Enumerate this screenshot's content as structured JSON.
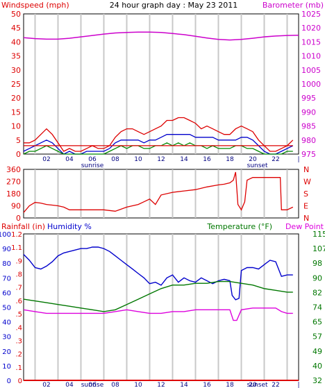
{
  "header": {
    "title": "24 hour graph day : May 23 2011",
    "left_label": "Windspeed (mph)",
    "right_label": "Barometer (mb)"
  },
  "labels": {
    "sunrise": "sunrise",
    "sunset": "sunset",
    "rainfall": "Rainfall (in)",
    "humidity": "Humidity %",
    "temperature": "Temperature (°F)",
    "dewpoint": "Dew Point"
  },
  "colors": {
    "windspeed": "#dd0000",
    "gust": "#dd0000",
    "avg_wind": "#0000cc",
    "wind_green": "#008800",
    "barometer": "#cc00cc",
    "direction": "#dd0000",
    "humidity": "#0000cc",
    "temperature": "#007700",
    "dewpoint": "#dd00dd",
    "rainfall": "#dd0000",
    "grid": "#c8c8c8"
  },
  "chart_data": [
    {
      "type": "line",
      "name": "wind-barometer-panel",
      "x_ticks": [
        "02",
        "04",
        "06",
        "08",
        "10",
        "12",
        "14",
        "16",
        "18",
        "20",
        "22",
        "|"
      ],
      "xlim": [
        0,
        24
      ],
      "left_axis": {
        "label": "Windspeed (mph)",
        "ylim": [
          0,
          50
        ],
        "ticks": [
          "0",
          "5",
          "10",
          "15",
          "20",
          "25",
          "30",
          "35",
          "40",
          "45",
          "50"
        ]
      },
      "right_axis": {
        "label": "Barometer (mb)",
        "ylim": [
          975,
          1025
        ],
        "ticks": [
          "975",
          "980",
          "985",
          "990",
          "995",
          "1000",
          "1005",
          "1010",
          "1015",
          "1020",
          "1025"
        ]
      },
      "sunrise_hour": 6.0,
      "sunset_hour": 20.4,
      "series": [
        {
          "key": "gust",
          "axis": "left",
          "x": [
            0,
            0.5,
            1,
            1.5,
            2,
            2.5,
            3,
            3.5,
            4,
            4.5,
            5,
            5.5,
            6,
            6.5,
            7,
            7.5,
            8,
            8.5,
            9,
            9.5,
            10,
            10.5,
            11,
            11.5,
            12,
            12.5,
            13,
            13.5,
            14,
            14.5,
            15,
            15.5,
            16,
            16.5,
            17,
            17.5,
            18,
            18.5,
            19,
            19.5,
            20,
            20.5,
            21,
            21.5,
            22,
            22.5,
            23,
            23.5
          ],
          "values": [
            4,
            4,
            5,
            7,
            9,
            7,
            4,
            1,
            2,
            1,
            1,
            2,
            3,
            2,
            2,
            3,
            6,
            8,
            9,
            9,
            8,
            7,
            8,
            9,
            10,
            12,
            12,
            13,
            13,
            12,
            11,
            9,
            10,
            9,
            8,
            7,
            7,
            9,
            10,
            9,
            8,
            5,
            3,
            1,
            1,
            2,
            3,
            5
          ]
        },
        {
          "key": "avg_wind",
          "axis": "left",
          "x": [
            0,
            0.5,
            1,
            1.5,
            2,
            2.5,
            3,
            3.5,
            4,
            4.5,
            5,
            5.5,
            6,
            6.5,
            7,
            7.5,
            8,
            8.5,
            9,
            9.5,
            10,
            10.5,
            11,
            11.5,
            12,
            12.5,
            13,
            13.5,
            14,
            14.5,
            15,
            15.5,
            16,
            16.5,
            17,
            17.5,
            18,
            18.5,
            19,
            19.5,
            20,
            20.5,
            21,
            21.5,
            22,
            22.5,
            23,
            23.5
          ],
          "values": [
            1,
            2,
            3,
            4,
            5,
            4,
            2,
            0,
            1,
            0,
            0,
            1,
            1,
            1,
            1,
            2,
            4,
            5,
            5,
            5,
            5,
            4,
            5,
            5,
            6,
            7,
            7,
            7,
            7,
            7,
            6,
            6,
            6,
            6,
            5,
            5,
            5,
            5,
            6,
            6,
            5,
            3,
            1,
            0,
            0,
            1,
            2,
            3
          ]
        },
        {
          "key": "wind_green",
          "axis": "left",
          "x": [
            0,
            0.5,
            1,
            1.5,
            2,
            2.5,
            3,
            3.5,
            4,
            4.5,
            5,
            5.5,
            6,
            6.5,
            7,
            7.5,
            8,
            8.5,
            9,
            9.5,
            10,
            10.5,
            11,
            11.5,
            12,
            12.5,
            13,
            13.5,
            14,
            14.5,
            15,
            15.5,
            16,
            16.5,
            17,
            17.5,
            18,
            18.5,
            19,
            19.5,
            20,
            20.5,
            21,
            21.5,
            22,
            22.5,
            23,
            23.5
          ],
          "values": [
            0,
            1,
            1,
            2,
            3,
            2,
            1,
            0,
            0,
            0,
            0,
            0,
            0,
            0,
            0,
            1,
            2,
            3,
            2,
            3,
            3,
            2,
            2,
            3,
            3,
            4,
            3,
            4,
            3,
            4,
            3,
            3,
            2,
            3,
            2,
            2,
            2,
            3,
            3,
            2,
            2,
            1,
            0,
            0,
            0,
            0,
            1,
            1
          ]
        },
        {
          "key": "windspeed",
          "axis": "left",
          "x": [
            0,
            1.5,
            3,
            4.5,
            6,
            8,
            10,
            12,
            14,
            16,
            18,
            20,
            22,
            23.5
          ],
          "values": [
            3,
            3,
            3,
            3,
            3,
            3,
            3,
            3,
            3,
            3,
            3,
            3,
            3,
            3
          ]
        },
        {
          "key": "barometer",
          "axis": "right",
          "x": [
            0,
            1,
            2,
            3,
            4,
            5,
            6,
            7,
            8,
            9,
            10,
            11,
            12,
            13,
            14,
            15,
            16,
            17,
            18,
            19,
            20,
            21,
            22,
            23,
            24
          ],
          "values": [
            1016.5,
            1016.2,
            1016.0,
            1016.0,
            1016.3,
            1016.8,
            1017.3,
            1017.8,
            1018.2,
            1018.4,
            1018.5,
            1018.5,
            1018.4,
            1018.0,
            1017.6,
            1017.0,
            1016.4,
            1015.9,
            1015.7,
            1015.9,
            1016.3,
            1016.8,
            1017.1,
            1017.3,
            1017.4
          ]
        }
      ]
    },
    {
      "type": "line",
      "name": "wind-direction-panel",
      "x_ticks": [],
      "xlim": [
        0,
        24
      ],
      "left_axis": {
        "label": "",
        "ylim": [
          0,
          360
        ],
        "ticks": [
          "0",
          "90",
          "180",
          "270",
          "360"
        ]
      },
      "right_axis": {
        "label": "",
        "ticks": [
          "N",
          "E",
          "S",
          "W",
          "N"
        ]
      },
      "series": [
        {
          "key": "direction",
          "axis": "left",
          "x": [
            0,
            0.5,
            1,
            1.5,
            2,
            2.5,
            3,
            3.5,
            4,
            5,
            6,
            7,
            8,
            9,
            10,
            10.5,
            11,
            11.5,
            12,
            13,
            14,
            15,
            16,
            17,
            17.5,
            18,
            18.3,
            18.5,
            18.7,
            19,
            19.3,
            19.5,
            20,
            21,
            22,
            22.4,
            22.5,
            23,
            23.5
          ],
          "values": [
            40,
            90,
            115,
            110,
            100,
            95,
            90,
            80,
            60,
            60,
            60,
            60,
            50,
            80,
            100,
            120,
            140,
            100,
            170,
            190,
            200,
            210,
            230,
            245,
            250,
            260,
            280,
            340,
            100,
            60,
            120,
            280,
            300,
            300,
            300,
            300,
            60,
            60,
            80
          ]
        }
      ]
    },
    {
      "type": "line",
      "name": "rain-humidity-temp-panel",
      "x_ticks": [
        "02",
        "04",
        "06",
        "08",
        "10",
        "12",
        "14",
        "16",
        "18",
        "20",
        "22",
        "|"
      ],
      "xlim": [
        0,
        24
      ],
      "left_axis": {
        "label": "Rainfall (in) / Humidity %",
        "ylim": [
          0,
          100
        ],
        "ticks": [
          "0",
          "10",
          "20",
          "30",
          "40",
          "50",
          "60",
          "70",
          "80",
          "90",
          "100"
        ]
      },
      "rain_axis": {
        "ticks": [
          "0",
          ".1",
          ".2",
          ".3",
          ".4",
          ".5",
          ".6",
          ".7",
          ".8",
          ".9",
          "1.1",
          "1.2"
        ]
      },
      "right_axis": {
        "label": "Temperature (°F) / Dew Point",
        "ylim": [
          32,
          115
        ],
        "ticks": [
          "32",
          "40",
          "49",
          "57",
          "65",
          "74",
          "82",
          "90",
          "98",
          "107",
          "115"
        ]
      },
      "series": [
        {
          "key": "humidity",
          "axis": "left",
          "x": [
            0,
            0.5,
            1,
            1.5,
            2,
            2.5,
            3,
            3.5,
            4,
            4.5,
            5,
            5.5,
            6,
            6.5,
            7,
            7.5,
            8,
            8.5,
            9,
            9.5,
            10,
            10.5,
            11,
            11.5,
            12,
            12.5,
            13,
            13.5,
            14,
            14.5,
            15,
            15.5,
            16,
            16.5,
            17,
            17.5,
            18,
            18.2,
            18.5,
            18.8,
            19,
            19.5,
            20,
            20.5,
            21,
            21.5,
            22,
            22.5,
            23,
            23.5
          ],
          "values": [
            86,
            82,
            77,
            76,
            78,
            81,
            85,
            87,
            88,
            89,
            90,
            90,
            91,
            91,
            90,
            88,
            85,
            82,
            79,
            76,
            73,
            70,
            66,
            67,
            65,
            70,
            72,
            67,
            70,
            68,
            67,
            70,
            68,
            66,
            68,
            69,
            68,
            58,
            55,
            56,
            75,
            77,
            77,
            76,
            79,
            82,
            81,
            71,
            72,
            72
          ]
        },
        {
          "key": "temperature",
          "axis": "right",
          "x": [
            0,
            1,
            2,
            3,
            4,
            5,
            6,
            7,
            8,
            9,
            10,
            11,
            12,
            13,
            14,
            15,
            16,
            17,
            18,
            19,
            20,
            21,
            22,
            23,
            23.5
          ],
          "values": [
            78,
            77,
            76,
            75,
            74,
            73,
            72,
            71,
            72,
            75,
            78,
            81,
            84,
            86,
            86,
            87,
            87,
            88,
            88,
            87,
            86,
            84,
            83,
            82,
            82
          ]
        },
        {
          "key": "dewpoint",
          "axis": "right",
          "x": [
            0,
            1,
            2,
            3,
            4,
            5,
            6,
            7,
            8,
            9,
            10,
            11,
            12,
            13,
            14,
            15,
            16,
            17,
            18,
            18.3,
            18.6,
            19,
            20,
            21,
            22,
            22.5,
            23,
            23.5
          ],
          "values": [
            72,
            71,
            70,
            70,
            70,
            70,
            70,
            70,
            71,
            72,
            71,
            70,
            70,
            71,
            71,
            72,
            72,
            72,
            72,
            66,
            66,
            72,
            73,
            73,
            73,
            71,
            70,
            70
          ]
        },
        {
          "key": "rainfall",
          "axis": "left",
          "x": [
            0,
            24
          ],
          "values": [
            0,
            0
          ]
        }
      ]
    }
  ]
}
